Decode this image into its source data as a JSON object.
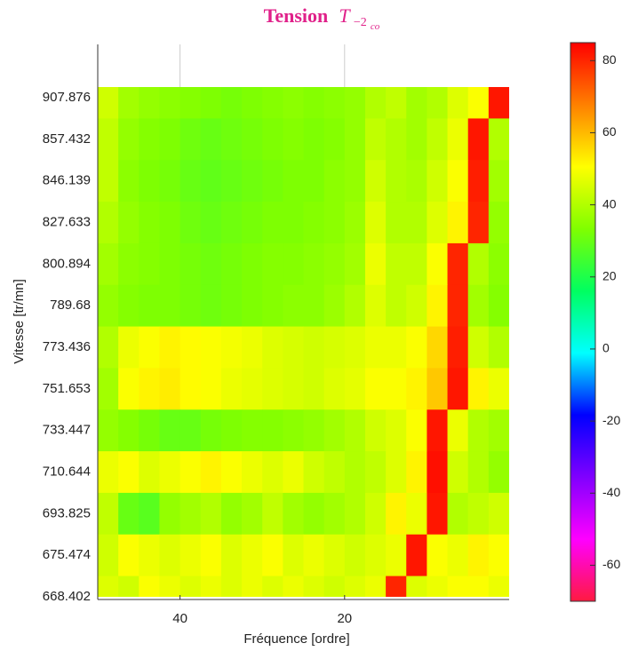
{
  "chart_data": {
    "type": "heatmap",
    "title": "Tension",
    "title_symbol": "T",
    "title_subscript": "−2",
    "title_subsubscript": "co",
    "xlabel": "Fréquence [ordre]",
    "ylabel": "Vitesse [tr/mn]",
    "xlim": [
      50,
      0
    ],
    "xticks": [
      40,
      20
    ],
    "grid": true,
    "x": [
      48.75,
      46.25,
      43.75,
      41.25,
      38.75,
      36.25,
      33.75,
      31.25,
      28.75,
      26.25,
      23.75,
      21.25,
      18.75,
      16.25,
      13.75,
      11.25,
      8.75,
      6.25,
      3.75,
      1.25
    ],
    "categories": [
      "907.876",
      "857.432",
      "846.139",
      "827.633",
      "800.894",
      "789.68",
      "773.436",
      "751.653",
      "733.447",
      "710.644",
      "693.825",
      "675.474",
      "668.402"
    ],
    "z": [
      [
        44,
        38,
        36,
        35,
        34,
        33,
        32,
        33,
        34,
        35,
        34,
        35,
        36,
        40,
        42,
        38,
        40,
        46,
        50,
        82
      ],
      [
        42,
        36,
        34,
        33,
        31,
        30,
        31,
        32,
        33,
        34,
        33,
        34,
        36,
        42,
        40,
        38,
        42,
        48,
        82,
        40
      ],
      [
        42,
        35,
        33,
        32,
        30,
        29,
        30,
        31,
        32,
        33,
        33,
        35,
        36,
        44,
        40,
        39,
        44,
        50,
        81,
        38
      ],
      [
        40,
        36,
        34,
        33,
        31,
        30,
        31,
        32,
        33,
        33,
        34,
        35,
        37,
        46,
        40,
        40,
        46,
        52,
        80,
        36
      ],
      [
        38,
        35,
        34,
        33,
        32,
        31,
        32,
        33,
        34,
        34,
        35,
        36,
        38,
        48,
        42,
        42,
        50,
        80,
        40,
        35
      ],
      [
        36,
        34,
        33,
        33,
        32,
        31,
        32,
        33,
        34,
        35,
        35,
        37,
        40,
        46,
        42,
        44,
        52,
        80,
        38,
        34
      ],
      [
        40,
        48,
        50,
        52,
        51,
        50,
        49,
        48,
        46,
        45,
        44,
        45,
        46,
        48,
        48,
        50,
        56,
        81,
        44,
        40
      ],
      [
        38,
        50,
        52,
        53,
        51,
        50,
        48,
        47,
        46,
        45,
        44,
        46,
        47,
        50,
        50,
        52,
        58,
        82,
        52,
        48
      ],
      [
        36,
        34,
        32,
        30,
        30,
        32,
        33,
        34,
        34,
        35,
        36,
        38,
        40,
        44,
        46,
        50,
        82,
        48,
        40,
        38
      ],
      [
        48,
        50,
        46,
        48,
        50,
        52,
        50,
        48,
        46,
        48,
        44,
        42,
        40,
        42,
        46,
        52,
        83,
        44,
        40,
        36
      ],
      [
        42,
        30,
        28,
        36,
        38,
        40,
        36,
        38,
        42,
        38,
        36,
        38,
        40,
        44,
        52,
        48,
        82,
        40,
        42,
        44
      ],
      [
        44,
        50,
        48,
        46,
        48,
        50,
        46,
        48,
        50,
        46,
        48,
        46,
        44,
        46,
        48,
        82,
        50,
        48,
        52,
        50
      ],
      [
        46,
        44,
        50,
        48,
        46,
        48,
        46,
        48,
        46,
        48,
        46,
        44,
        46,
        48,
        80,
        46,
        48,
        50,
        50,
        48
      ]
    ],
    "clim": [
      -70,
      85
    ],
    "cticks": [
      -60,
      -40,
      -20,
      0,
      20,
      40,
      60,
      80
    ],
    "colormap": [
      "#ff1a40",
      "#ff00ff",
      "#8000ff",
      "#0000ff",
      "#00ffff",
      "#00ff60",
      "#80ff00",
      "#ffff00",
      "#ff8000",
      "#ff0000"
    ],
    "title_color": "#e0218a"
  }
}
